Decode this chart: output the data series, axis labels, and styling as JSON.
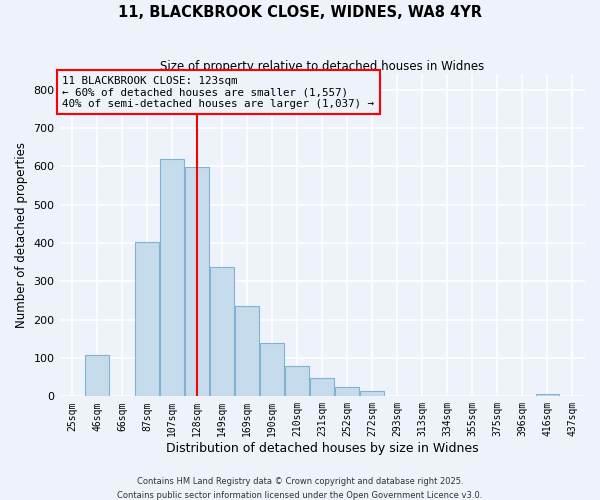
{
  "title": "11, BLACKBROOK CLOSE, WIDNES, WA8 4YR",
  "subtitle": "Size of property relative to detached houses in Widnes",
  "xlabel": "Distribution of detached houses by size in Widnes",
  "ylabel": "Number of detached properties",
  "bin_labels": [
    "25sqm",
    "46sqm",
    "66sqm",
    "87sqm",
    "107sqm",
    "128sqm",
    "149sqm",
    "169sqm",
    "190sqm",
    "210sqm",
    "231sqm",
    "252sqm",
    "272sqm",
    "293sqm",
    "313sqm",
    "334sqm",
    "355sqm",
    "375sqm",
    "396sqm",
    "416sqm",
    "437sqm"
  ],
  "bar_heights": [
    0,
    107,
    0,
    403,
    620,
    597,
    338,
    235,
    138,
    78,
    48,
    25,
    14,
    0,
    0,
    0,
    0,
    0,
    0,
    7,
    0
  ],
  "bar_color": "#c6dcec",
  "bar_edgecolor": "#7fb3d3",
  "vline_index": 5,
  "vline_color": "red",
  "annotation_title": "11 BLACKBROOK CLOSE: 123sqm",
  "annotation_line1": "← 60% of detached houses are smaller (1,557)",
  "annotation_line2": "40% of semi-detached houses are larger (1,037) →",
  "annotation_box_color": "red",
  "ylim": [
    0,
    840
  ],
  "yticks": [
    0,
    100,
    200,
    300,
    400,
    500,
    600,
    700,
    800
  ],
  "footer1": "Contains HM Land Registry data © Crown copyright and database right 2025.",
  "footer2": "Contains public sector information licensed under the Open Government Licence v3.0.",
  "background_color": "#eef2fa",
  "grid_color": "#ffffff",
  "bar_alpha": 1.0
}
